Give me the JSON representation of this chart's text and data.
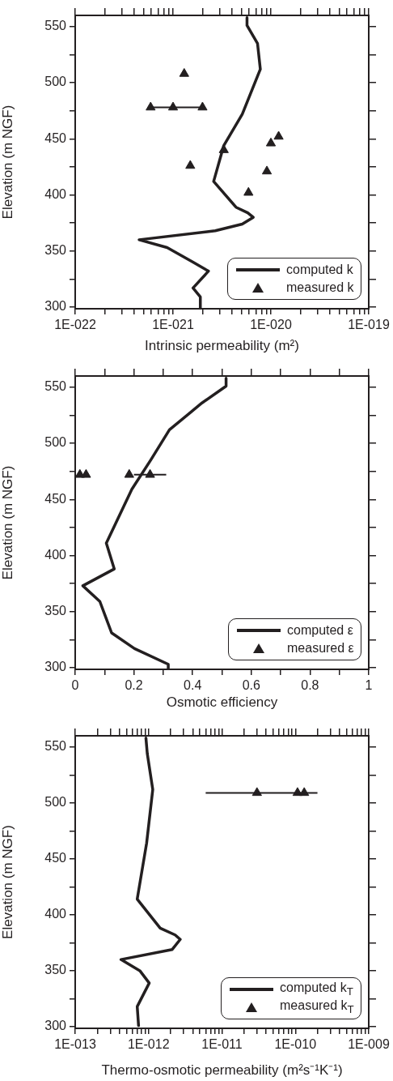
{
  "chart_data": [
    {
      "type": "line",
      "xlabel": "Intrinsic permeability (m²)",
      "ylabel": "Elevation (m NGF)",
      "log": "x",
      "legend": "bottom right",
      "xlim": [
        1e-22,
        1e-19
      ],
      "ylim": [
        298.5,
        560
      ],
      "xticks": [
        {
          "value": 1e-22,
          "label": "1E-022"
        },
        {
          "value": 2e-22,
          "label": null
        },
        {
          "value": 3e-22,
          "label": null
        },
        {
          "value": 4e-22,
          "label": null
        },
        {
          "value": 5e-22,
          "label": null
        },
        {
          "value": 6e-22,
          "label": null
        },
        {
          "value": 7e-22,
          "label": null
        },
        {
          "value": 8e-22,
          "label": null
        },
        {
          "value": 9e-22,
          "label": null
        },
        {
          "value": 1e-21,
          "label": "1E-021"
        },
        {
          "value": 2e-21,
          "label": null
        },
        {
          "value": 3e-21,
          "label": null
        },
        {
          "value": 4e-21,
          "label": null
        },
        {
          "value": 5e-21,
          "label": null
        },
        {
          "value": 6e-21,
          "label": null
        },
        {
          "value": 7e-21,
          "label": null
        },
        {
          "value": 8e-21,
          "label": null
        },
        {
          "value": 9e-21,
          "label": null
        },
        {
          "value": 1e-20,
          "label": "1E-020"
        },
        {
          "value": 2e-20,
          "label": null
        },
        {
          "value": 3e-20,
          "label": null
        },
        {
          "value": 4e-20,
          "label": null
        },
        {
          "value": 5e-20,
          "label": null
        },
        {
          "value": 6e-20,
          "label": null
        },
        {
          "value": 7e-20,
          "label": null
        },
        {
          "value": 8e-20,
          "label": null
        },
        {
          "value": 9e-20,
          "label": null
        },
        {
          "value": 1e-19,
          "label": "1E-019"
        }
      ],
      "yticks": [
        300,
        {
          "value": 325,
          "label": null
        },
        350,
        {
          "value": 375,
          "label": null
        },
        400,
        {
          "value": 425,
          "label": null
        },
        450,
        {
          "value": 475,
          "label": null
        },
        500,
        {
          "value": 525,
          "label": null
        },
        550
      ],
      "series": [
        {
          "name": "computed k",
          "type": "line",
          "marker": "none",
          "color": "#231f20",
          "x": [
            5.7e-21,
            5.7e-21,
            7.3e-21,
            7.8e-21,
            5.1e-21,
            3.3e-21,
            2.6e-21,
            4.4e-21,
            5.8e-21,
            6.6e-21,
            5.1e-21,
            2.7e-21,
            4.5e-22,
            8.7e-22,
            1.6e-21,
            2.3e-21,
            1.6e-21,
            1.9e-21,
            1.9e-21
          ],
          "values": [
            558,
            551,
            535,
            512,
            472,
            444,
            412,
            389,
            384,
            380,
            374,
            368,
            360,
            353,
            340,
            332,
            317,
            309,
            299
          ]
        },
        {
          "name": "measured k",
          "type": "scatter",
          "marker": "triangle",
          "color": "#231f20",
          "x": [
            1.3e-21,
            5.9e-22,
            1e-21,
            2e-21,
            1.2e-20,
            1e-20,
            3.3e-21,
            1.5e-21,
            9.1e-21,
            5.9e-21
          ],
          "values": [
            508,
            478,
            478,
            478,
            452,
            446,
            440,
            426,
            421,
            402
          ],
          "xerrors": [
            null,
            null,
            [
              5.9e-22,
              2e-21
            ],
            null,
            null,
            null,
            null,
            null,
            null,
            null
          ]
        }
      ]
    },
    {
      "type": "line",
      "xlabel": "Osmotic efficiency",
      "ylabel": "Elevation (m NGF)",
      "legend": "bottom right",
      "xlim": [
        0,
        1
      ],
      "ylim": [
        298.5,
        560
      ],
      "xticks": [
        0,
        {
          "value": 0.1,
          "label": null
        },
        0.2,
        {
          "value": 0.3,
          "label": null
        },
        0.4,
        {
          "value": 0.5,
          "label": null
        },
        0.6,
        {
          "value": 0.7,
          "label": null
        },
        0.8,
        {
          "value": 0.9,
          "label": null
        },
        1
      ],
      "yticks": [
        300,
        {
          "value": 325,
          "label": null
        },
        350,
        {
          "value": 375,
          "label": null
        },
        400,
        {
          "value": 425,
          "label": null
        },
        450,
        {
          "value": 475,
          "label": null
        },
        500,
        {
          "value": 525,
          "label": null
        },
        550
      ],
      "series": [
        {
          "name": "computed ε",
          "type": "line",
          "marker": "none",
          "color": "#231f20",
          "x": [
            0.514,
            0.514,
            0.432,
            0.321,
            0.257,
            0.193,
            0.106,
            0.133,
            0.026,
            0.084,
            0.124,
            0.202,
            0.317,
            0.317
          ],
          "values": [
            558,
            551,
            536,
            512,
            485,
            459,
            411,
            388,
            373,
            359,
            331,
            317,
            303,
            299
          ]
        },
        {
          "name": "measured ε",
          "type": "scatter",
          "marker": "triangle",
          "color": "#231f20",
          "x": [
            0.016,
            0.037,
            0.184,
            0.255
          ],
          "values": [
            472,
            472,
            472,
            472
          ],
          "xerrors": [
            null,
            null,
            null,
            [
              0.2,
              0.31
            ]
          ]
        }
      ]
    },
    {
      "type": "line",
      "xlabel": "Thermo-osmotic permeability (m²s⁻¹K⁻¹)",
      "ylabel": "Elevation (m NGF)",
      "log": "x",
      "legend": "bottom right",
      "xlim": [
        1e-13,
        1e-09
      ],
      "ylim": [
        298.5,
        560
      ],
      "xticks": [
        {
          "value": 1e-13,
          "label": "1E-013"
        },
        {
          "value": 2e-13,
          "label": null
        },
        {
          "value": 3e-13,
          "label": null
        },
        {
          "value": 4e-13,
          "label": null
        },
        {
          "value": 5e-13,
          "label": null
        },
        {
          "value": 6e-13,
          "label": null
        },
        {
          "value": 7e-13,
          "label": null
        },
        {
          "value": 8e-13,
          "label": null
        },
        {
          "value": 9e-13,
          "label": null
        },
        {
          "value": 1e-12,
          "label": "1E-012"
        },
        {
          "value": 2e-12,
          "label": null
        },
        {
          "value": 3e-12,
          "label": null
        },
        {
          "value": 4e-12,
          "label": null
        },
        {
          "value": 5e-12,
          "label": null
        },
        {
          "value": 6e-12,
          "label": null
        },
        {
          "value": 7e-12,
          "label": null
        },
        {
          "value": 8e-12,
          "label": null
        },
        {
          "value": 9e-12,
          "label": null
        },
        {
          "value": 1e-11,
          "label": "1E-011"
        },
        {
          "value": 2e-11,
          "label": null
        },
        {
          "value": 3e-11,
          "label": null
        },
        {
          "value": 4e-11,
          "label": null
        },
        {
          "value": 5e-11,
          "label": null
        },
        {
          "value": 6e-11,
          "label": null
        },
        {
          "value": 7e-11,
          "label": null
        },
        {
          "value": 8e-11,
          "label": null
        },
        {
          "value": 9e-11,
          "label": null
        },
        {
          "value": 1e-10,
          "label": "1E-010"
        },
        {
          "value": 2e-10,
          "label": null
        },
        {
          "value": 3e-10,
          "label": null
        },
        {
          "value": 4e-10,
          "label": null
        },
        {
          "value": 5e-10,
          "label": null
        },
        {
          "value": 6e-10,
          "label": null
        },
        {
          "value": 7e-10,
          "label": null
        },
        {
          "value": 8e-10,
          "label": null
        },
        {
          "value": 9e-10,
          "label": null
        },
        {
          "value": 1e-09,
          "label": "1E-009"
        }
      ],
      "yticks": [
        300,
        {
          "value": 325,
          "label": null
        },
        350,
        {
          "value": 375,
          "label": null
        },
        400,
        {
          "value": 425,
          "label": null
        },
        450,
        {
          "value": 475,
          "label": null
        },
        500,
        {
          "value": 525,
          "label": null
        },
        550
      ],
      "series": [
        {
          "name": "computed k$_{T}$",
          "type": "line",
          "marker": "none",
          "color": "#231f20",
          "x": [
            9.2e-13,
            9.6e-13,
            1.14e-12,
            9.4e-13,
            7e-13,
            1.44e-12,
            2.3e-12,
            2.7e-12,
            2.1e-12,
            4.2e-13,
            7.6e-13,
            1.02e-12,
            7e-13,
            7.3e-13
          ],
          "values": [
            558,
            544,
            512,
            464,
            414,
            388,
            382,
            378,
            369,
            360,
            350,
            339,
            318,
            301
          ]
        },
        {
          "name": "measured k$_{T}$",
          "type": "scatter",
          "marker": "triangle",
          "color": "#231f20",
          "x": [
            3e-11,
            1.07e-10,
            1.32e-10
          ],
          "values": [
            509,
            509,
            509
          ],
          "xerrors": [
            [
              6e-12,
              2e-10
            ],
            null,
            null
          ]
        }
      ]
    }
  ]
}
